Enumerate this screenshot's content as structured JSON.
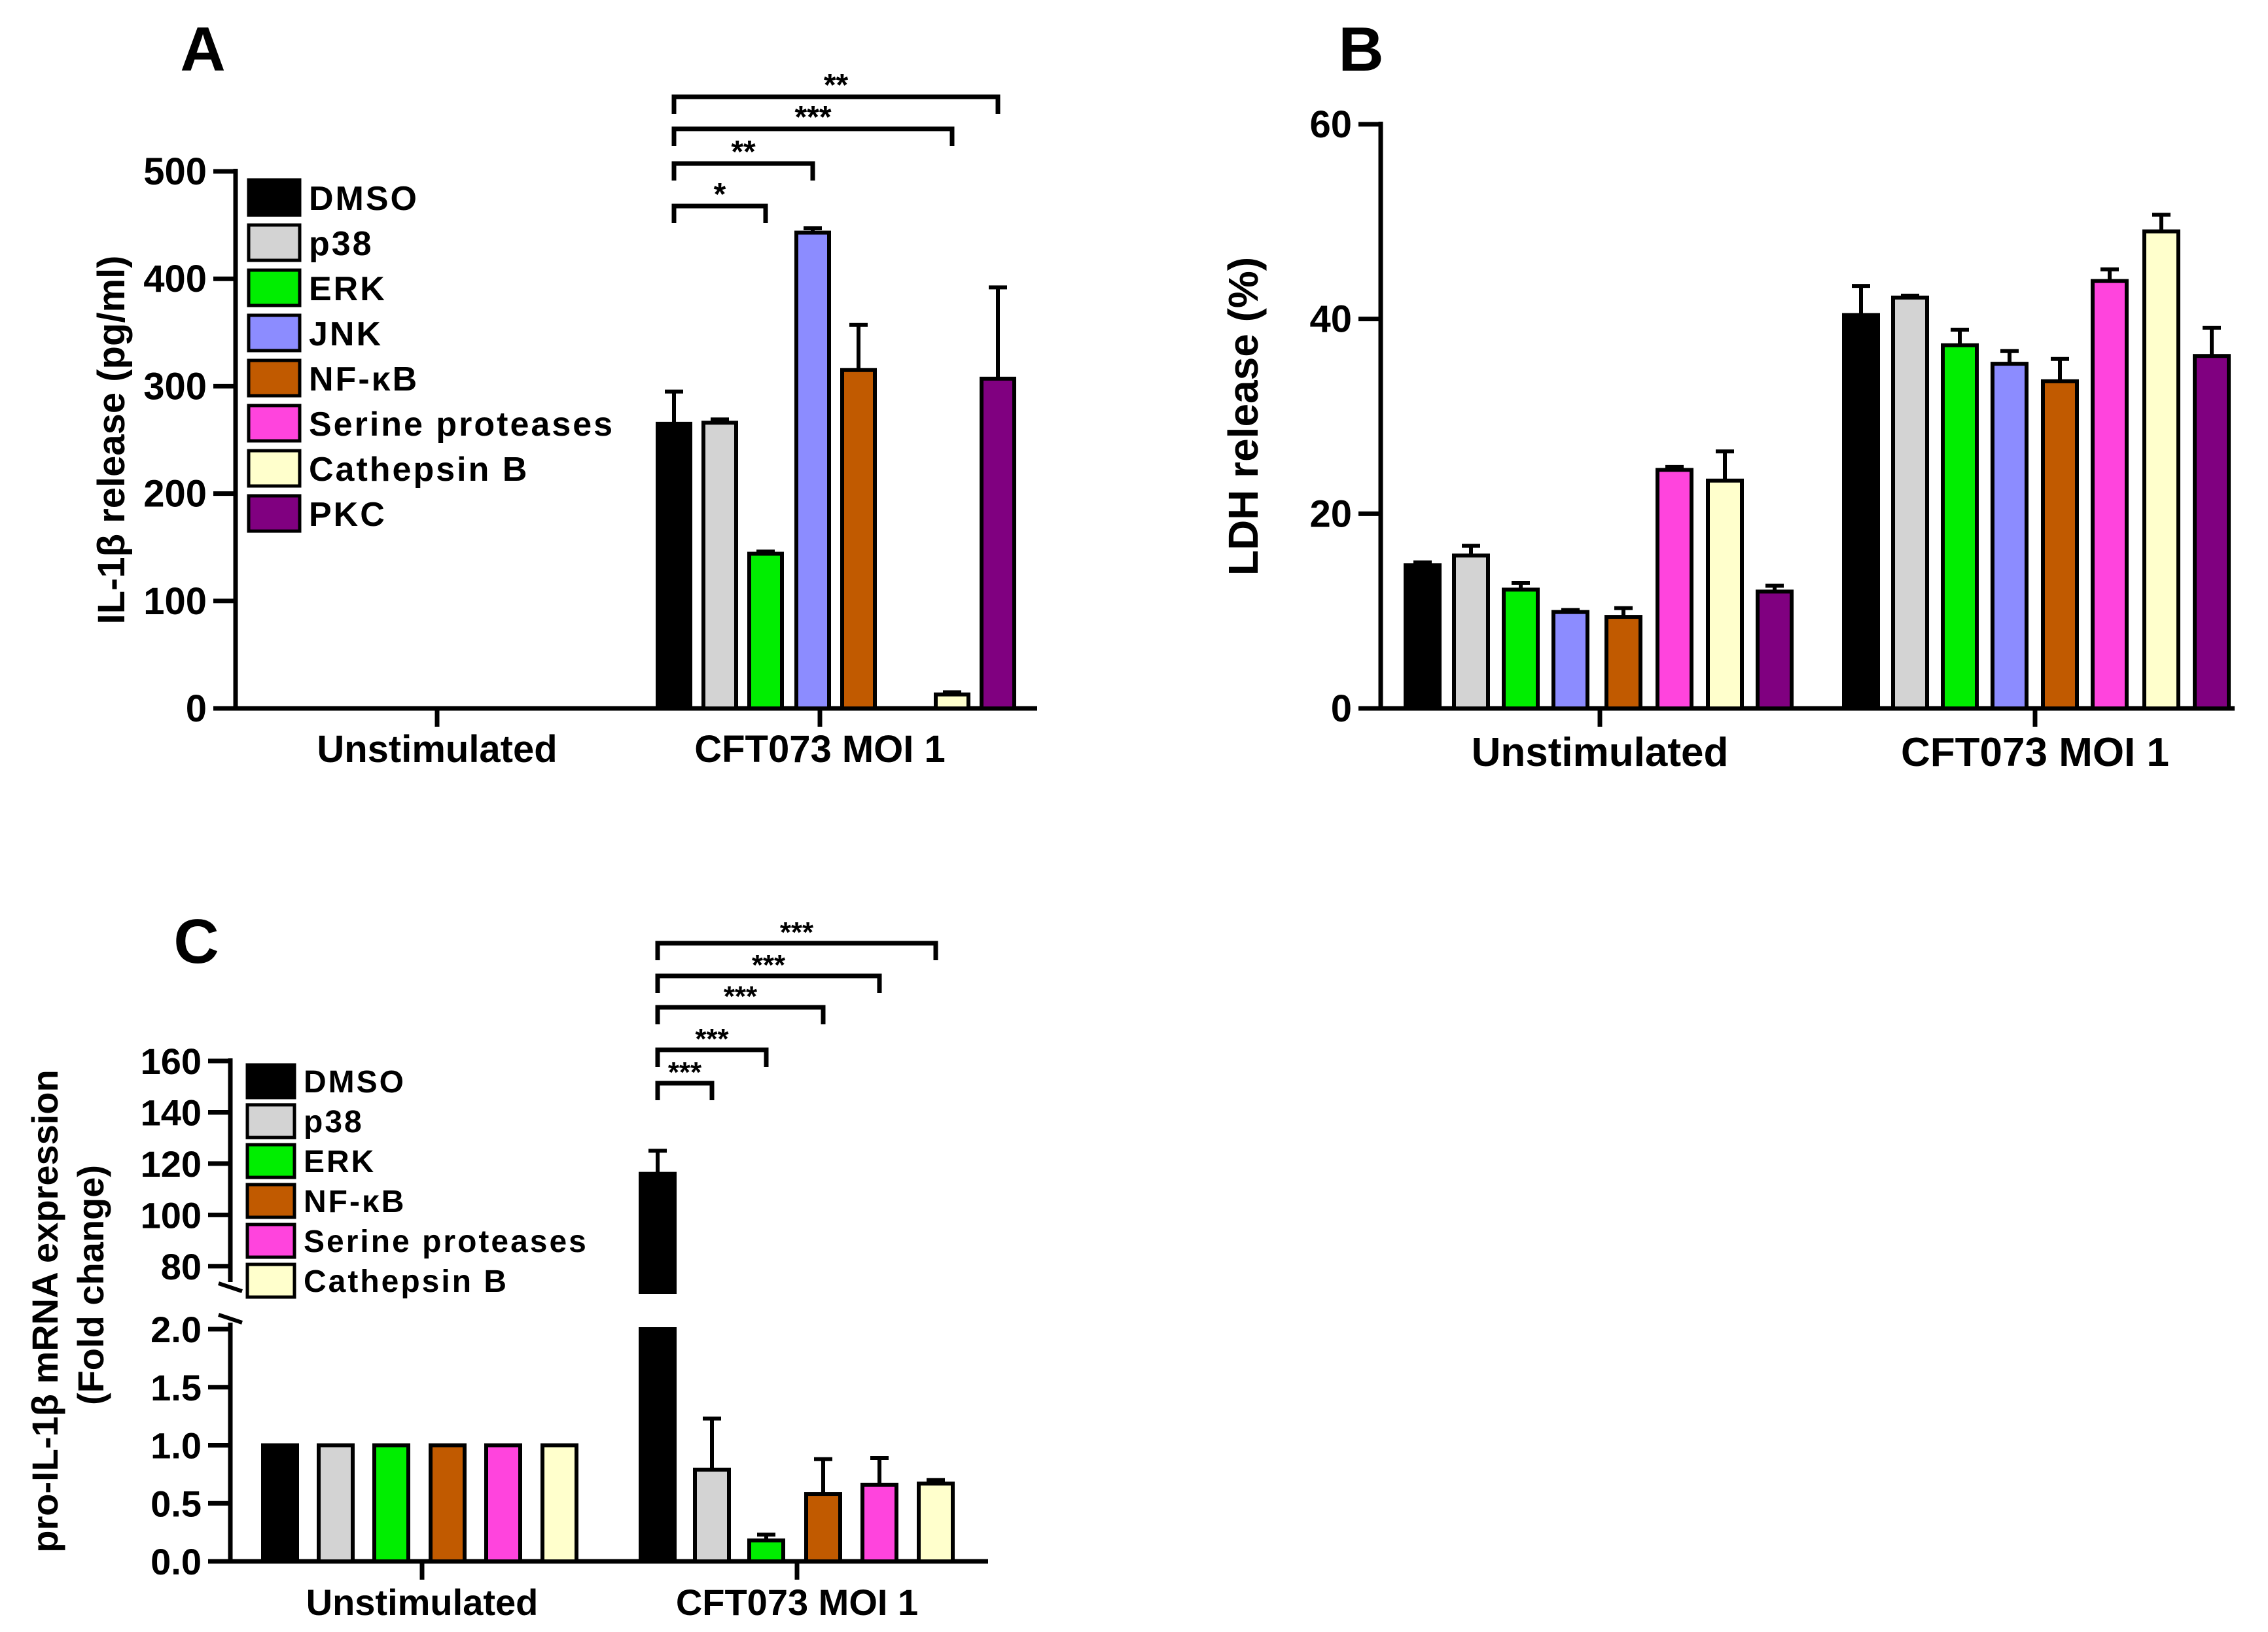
{
  "colors": {
    "DMSO": "#000000",
    "p38": "#d3d3d3",
    "ERK": "#00ee00",
    "JNK": "#8c8cff",
    "NF-κB": "#c15a00",
    "Serine proteases": "#ff44dd",
    "Cathepsin B": "#ffffcc",
    "PKC": "#800080"
  },
  "chart_data": [
    {
      "panel": "A",
      "type": "bar",
      "ylabel": "IL-1β release (pg/ml)",
      "ylim": [
        0,
        500
      ],
      "yticks": [
        0,
        100,
        200,
        300,
        400,
        500
      ],
      "categories": [
        "Unstimulated",
        "CFT073 MOI 1"
      ],
      "legend": [
        "DMSO",
        "p38",
        "ERK",
        "JNK",
        "NF-κB",
        "Serine proteases",
        "Cathepsin B",
        "PKC"
      ],
      "series": [
        {
          "name": "DMSO",
          "values": [
            0,
            265
          ],
          "errors": [
            0,
            30
          ]
        },
        {
          "name": "p38",
          "values": [
            0,
            266
          ],
          "errors": [
            0,
            3
          ]
        },
        {
          "name": "ERK",
          "values": [
            0,
            144
          ],
          "errors": [
            0,
            2
          ]
        },
        {
          "name": "JNK",
          "values": [
            0,
            443
          ],
          "errors": [
            0,
            4
          ]
        },
        {
          "name": "NF-κB",
          "values": [
            0,
            315
          ],
          "errors": [
            0,
            42
          ]
        },
        {
          "name": "Serine proteases",
          "values": [
            0,
            0
          ],
          "errors": [
            0,
            0
          ]
        },
        {
          "name": "Cathepsin B",
          "values": [
            0,
            13
          ],
          "errors": [
            0,
            2
          ]
        },
        {
          "name": "PKC",
          "values": [
            0,
            307
          ],
          "errors": [
            0,
            85
          ]
        }
      ],
      "significance": [
        {
          "from": "DMSO",
          "to": "ERK",
          "label": "*"
        },
        {
          "from": "DMSO",
          "to": "JNK",
          "label": "**"
        },
        {
          "from": "DMSO",
          "to": "Cathepsin B",
          "label": "***"
        },
        {
          "from": "DMSO",
          "to": "PKC",
          "label": "**"
        }
      ]
    },
    {
      "panel": "B",
      "type": "bar",
      "ylabel": "LDH release (%)",
      "ylim": [
        0,
        60
      ],
      "yticks": [
        0,
        20,
        40,
        60
      ],
      "categories": [
        "Unstimulated",
        "CFT073 MOI 1"
      ],
      "series": [
        {
          "name": "DMSO",
          "values": [
            14.7,
            40.4
          ],
          "errors": [
            0.3,
            3
          ]
        },
        {
          "name": "p38",
          "values": [
            15.7,
            42.2
          ],
          "errors": [
            1,
            0.2
          ]
        },
        {
          "name": "ERK",
          "values": [
            12.2,
            37.3
          ],
          "errors": [
            0.7,
            1.6
          ]
        },
        {
          "name": "JNK",
          "values": [
            9.9,
            35.4
          ],
          "errors": [
            0.2,
            1.3
          ]
        },
        {
          "name": "NF-κB",
          "values": [
            9.4,
            33.6
          ],
          "errors": [
            0.9,
            2.3
          ]
        },
        {
          "name": "Serine proteases",
          "values": [
            24.5,
            43.9
          ],
          "errors": [
            0.3,
            1.2
          ]
        },
        {
          "name": "Cathepsin B",
          "values": [
            23.4,
            49
          ],
          "errors": [
            3,
            1.7
          ]
        },
        {
          "name": "PKC",
          "values": [
            12,
            36.2
          ],
          "errors": [
            0.6,
            2.9
          ]
        }
      ]
    },
    {
      "panel": "C",
      "type": "bar",
      "ylabel_line1": "pro-IL-1β mRNA expression",
      "ylabel_line2": "(Fold change)",
      "y_axis_break": true,
      "ylim_lower": [
        0,
        2
      ],
      "yticks_lower": [
        "0.0",
        "0.5",
        "1.0",
        "1.5",
        "2.0"
      ],
      "ylim_upper": [
        70,
        160
      ],
      "yticks_upper": [
        "80",
        "100",
        "120",
        "140",
        "160"
      ],
      "categories": [
        "Unstimulated",
        "CFT073 MOI 1"
      ],
      "legend": [
        "DMSO",
        "p38",
        "ERK",
        "NF-κB",
        "Serine proteases",
        "Cathepsin B"
      ],
      "series": [
        {
          "name": "DMSO",
          "values": [
            1,
            116
          ],
          "errors": [
            0,
            9
          ]
        },
        {
          "name": "p38",
          "values": [
            1,
            0.79
          ],
          "errors": [
            0,
            0.44
          ]
        },
        {
          "name": "ERK",
          "values": [
            1,
            0.18
          ],
          "errors": [
            0,
            0.05
          ]
        },
        {
          "name": "NF-κB",
          "values": [
            1,
            0.58
          ],
          "errors": [
            0,
            0.3
          ]
        },
        {
          "name": "Serine proteases",
          "values": [
            1,
            0.66
          ],
          "errors": [
            0,
            0.23
          ]
        },
        {
          "name": "Cathepsin B",
          "values": [
            1,
            0.67
          ],
          "errors": [
            0,
            0.03
          ]
        }
      ],
      "significance": [
        {
          "from": "DMSO",
          "to": "p38",
          "label": "***"
        },
        {
          "from": "DMSO",
          "to": "ERK",
          "label": "***"
        },
        {
          "from": "DMSO",
          "to": "NF-κB",
          "label": "***"
        },
        {
          "from": "DMSO",
          "to": "Serine proteases",
          "label": "***"
        },
        {
          "from": "DMSO",
          "to": "Cathepsin B",
          "label": "***"
        }
      ]
    }
  ]
}
